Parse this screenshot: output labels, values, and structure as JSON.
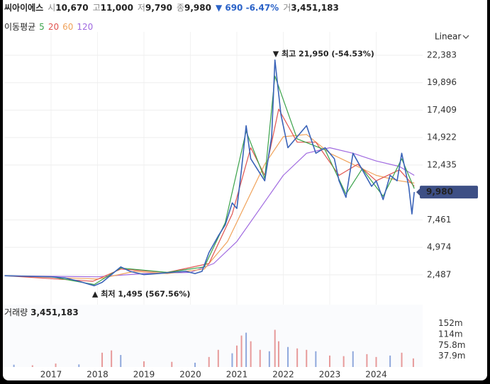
{
  "header": {
    "name": "씨아이에스",
    "items": [
      {
        "label": "시",
        "value": "10,670"
      },
      {
        "label": "고",
        "value": "11,000"
      },
      {
        "label": "저",
        "value": "9,790"
      },
      {
        "label": "종",
        "value": "9,980"
      }
    ],
    "change": "▼ 690 -6.47%",
    "volume_label": "거",
    "volume_value": "3,451,183"
  },
  "chart_data": {
    "type": "line",
    "scale_label": "Linear",
    "ma_title": "이동평균",
    "xlim": [
      2016,
      2025
    ],
    "xticks": [
      2017,
      2018,
      2019,
      2020,
      2021,
      2022,
      2023,
      2024
    ],
    "ylim": [
      100,
      24500
    ],
    "yticks": [
      {
        "value": 2487,
        "label": "2,487"
      },
      {
        "value": 4974,
        "label": "4,974"
      },
      {
        "value": 7461,
        "label": "7,461"
      },
      {
        "value": 12435,
        "label": "12,435"
      },
      {
        "value": 14922,
        "label": "14,922"
      },
      {
        "value": 17409,
        "label": "17,409"
      },
      {
        "value": 19896,
        "label": "19,896"
      },
      {
        "value": 22383,
        "label": "22,383"
      }
    ],
    "grid": true,
    "last_price": {
      "value": 9980,
      "label": "9,980"
    },
    "high_label": "▼ 최고 21,950 (-54.53%)",
    "low_label": "▲ 최저 1,495 (567.56%)",
    "price": {
      "color": "#3a63b8",
      "x": [
        2016.0,
        2016.5,
        2017.0,
        2017.3,
        2017.6,
        2017.93,
        2018.1,
        2018.3,
        2018.5,
        2018.7,
        2019.0,
        2019.3,
        2019.6,
        2019.9,
        2020.1,
        2020.25,
        2020.4,
        2020.6,
        2020.75,
        2020.9,
        2021.0,
        2021.1,
        2021.2,
        2021.3,
        2021.45,
        2021.6,
        2021.75,
        2021.82,
        2021.95,
        2022.1,
        2022.3,
        2022.5,
        2022.7,
        2022.9,
        2023.1,
        2023.2,
        2023.35,
        2023.5,
        2023.7,
        2023.9,
        2024.0,
        2024.15,
        2024.3,
        2024.45,
        2024.55,
        2024.7,
        2024.77,
        2024.82
      ],
      "values": [
        2400,
        2350,
        2300,
        2200,
        1900,
        1495,
        1800,
        2500,
        3200,
        2800,
        2500,
        2600,
        2700,
        2800,
        2600,
        2800,
        4500,
        6000,
        7000,
        9000,
        8500,
        12000,
        16000,
        13000,
        12000,
        11000,
        15000,
        21950,
        17000,
        14000,
        15000,
        16000,
        13500,
        14000,
        13000,
        11000,
        9500,
        13500,
        12000,
        10500,
        11000,
        9300,
        11500,
        11000,
        13500,
        10500,
        8000,
        9980
      ]
    },
    "series": [
      {
        "name": "5",
        "color": "#3aa34a",
        "x": [
          2016.0,
          2017.0,
          2017.93,
          2018.5,
          2019.5,
          2020.3,
          2020.75,
          2021.2,
          2021.6,
          2021.82,
          2022.3,
          2022.9,
          2023.35,
          2023.7,
          2024.15,
          2024.55,
          2024.82
        ],
        "values": [
          2400,
          2300,
          1600,
          3100,
          2700,
          3200,
          7200,
          15500,
          11200,
          20500,
          14800,
          13800,
          9800,
          12100,
          9600,
          13000,
          10300
        ]
      },
      {
        "name": "20",
        "color": "#e0534f",
        "x": [
          2016.0,
          2017.9,
          2018.5,
          2019.5,
          2020.4,
          2020.9,
          2021.3,
          2021.6,
          2021.9,
          2022.3,
          2022.7,
          2023.2,
          2023.6,
          2024.0,
          2024.5,
          2024.82
        ],
        "values": [
          2400,
          1900,
          3000,
          2700,
          3500,
          8000,
          14000,
          11500,
          17500,
          14500,
          14500,
          11500,
          12500,
          11000,
          12000,
          10500
        ]
      },
      {
        "name": "60",
        "color": "#f0a25a",
        "x": [
          2016.0,
          2018.0,
          2018.8,
          2019.5,
          2020.3,
          2020.8,
          2021.2,
          2021.6,
          2022.0,
          2022.5,
          2023.0,
          2023.5,
          2024.0,
          2024.5,
          2024.82
        ],
        "values": [
          2400,
          2100,
          2800,
          2600,
          3000,
          5500,
          9000,
          12500,
          15000,
          15200,
          13500,
          12500,
          11500,
          11000,
          10800
        ]
      },
      {
        "name": "120",
        "color": "#a06ae0",
        "x": [
          2016.0,
          2018.0,
          2019.0,
          2020.0,
          2020.5,
          2021.0,
          2021.5,
          2022.0,
          2022.5,
          2023.0,
          2023.5,
          2024.0,
          2024.5,
          2024.82
        ],
        "values": [
          2400,
          2300,
          2600,
          2700,
          3500,
          5500,
          8500,
          11500,
          13500,
          14000,
          13500,
          12800,
          12300,
          11500
        ]
      }
    ],
    "volume": {
      "title": "거래량",
      "value_text": "3,451,183",
      "color": "#e79a9a",
      "ylim": [
        0,
        218000000
      ],
      "yticks": [
        {
          "value": 37900000,
          "label": "37.9m"
        },
        {
          "value": 75800000,
          "label": "75.8m"
        },
        {
          "value": 114000000,
          "label": "114m"
        },
        {
          "value": 152000000,
          "label": "152m"
        }
      ],
      "x": [
        2016.2,
        2016.6,
        2017.1,
        2017.6,
        2018.1,
        2018.3,
        2018.5,
        2019.0,
        2019.6,
        2020.1,
        2020.4,
        2020.6,
        2020.9,
        2021.0,
        2021.1,
        2021.2,
        2021.3,
        2021.5,
        2021.7,
        2021.82,
        2021.9,
        2022.1,
        2022.3,
        2022.5,
        2022.7,
        2023.0,
        2023.3,
        2023.5,
        2023.8,
        2024.0,
        2024.3,
        2024.55,
        2024.8
      ],
      "values": [
        8000000,
        6000000,
        12000000,
        9000000,
        50000000,
        58000000,
        42000000,
        20000000,
        18000000,
        15000000,
        35000000,
        60000000,
        48000000,
        75000000,
        110000000,
        120000000,
        90000000,
        60000000,
        55000000,
        130000000,
        90000000,
        70000000,
        65000000,
        60000000,
        55000000,
        40000000,
        38000000,
        55000000,
        45000000,
        35000000,
        40000000,
        50000000,
        30000000
      ]
    }
  }
}
